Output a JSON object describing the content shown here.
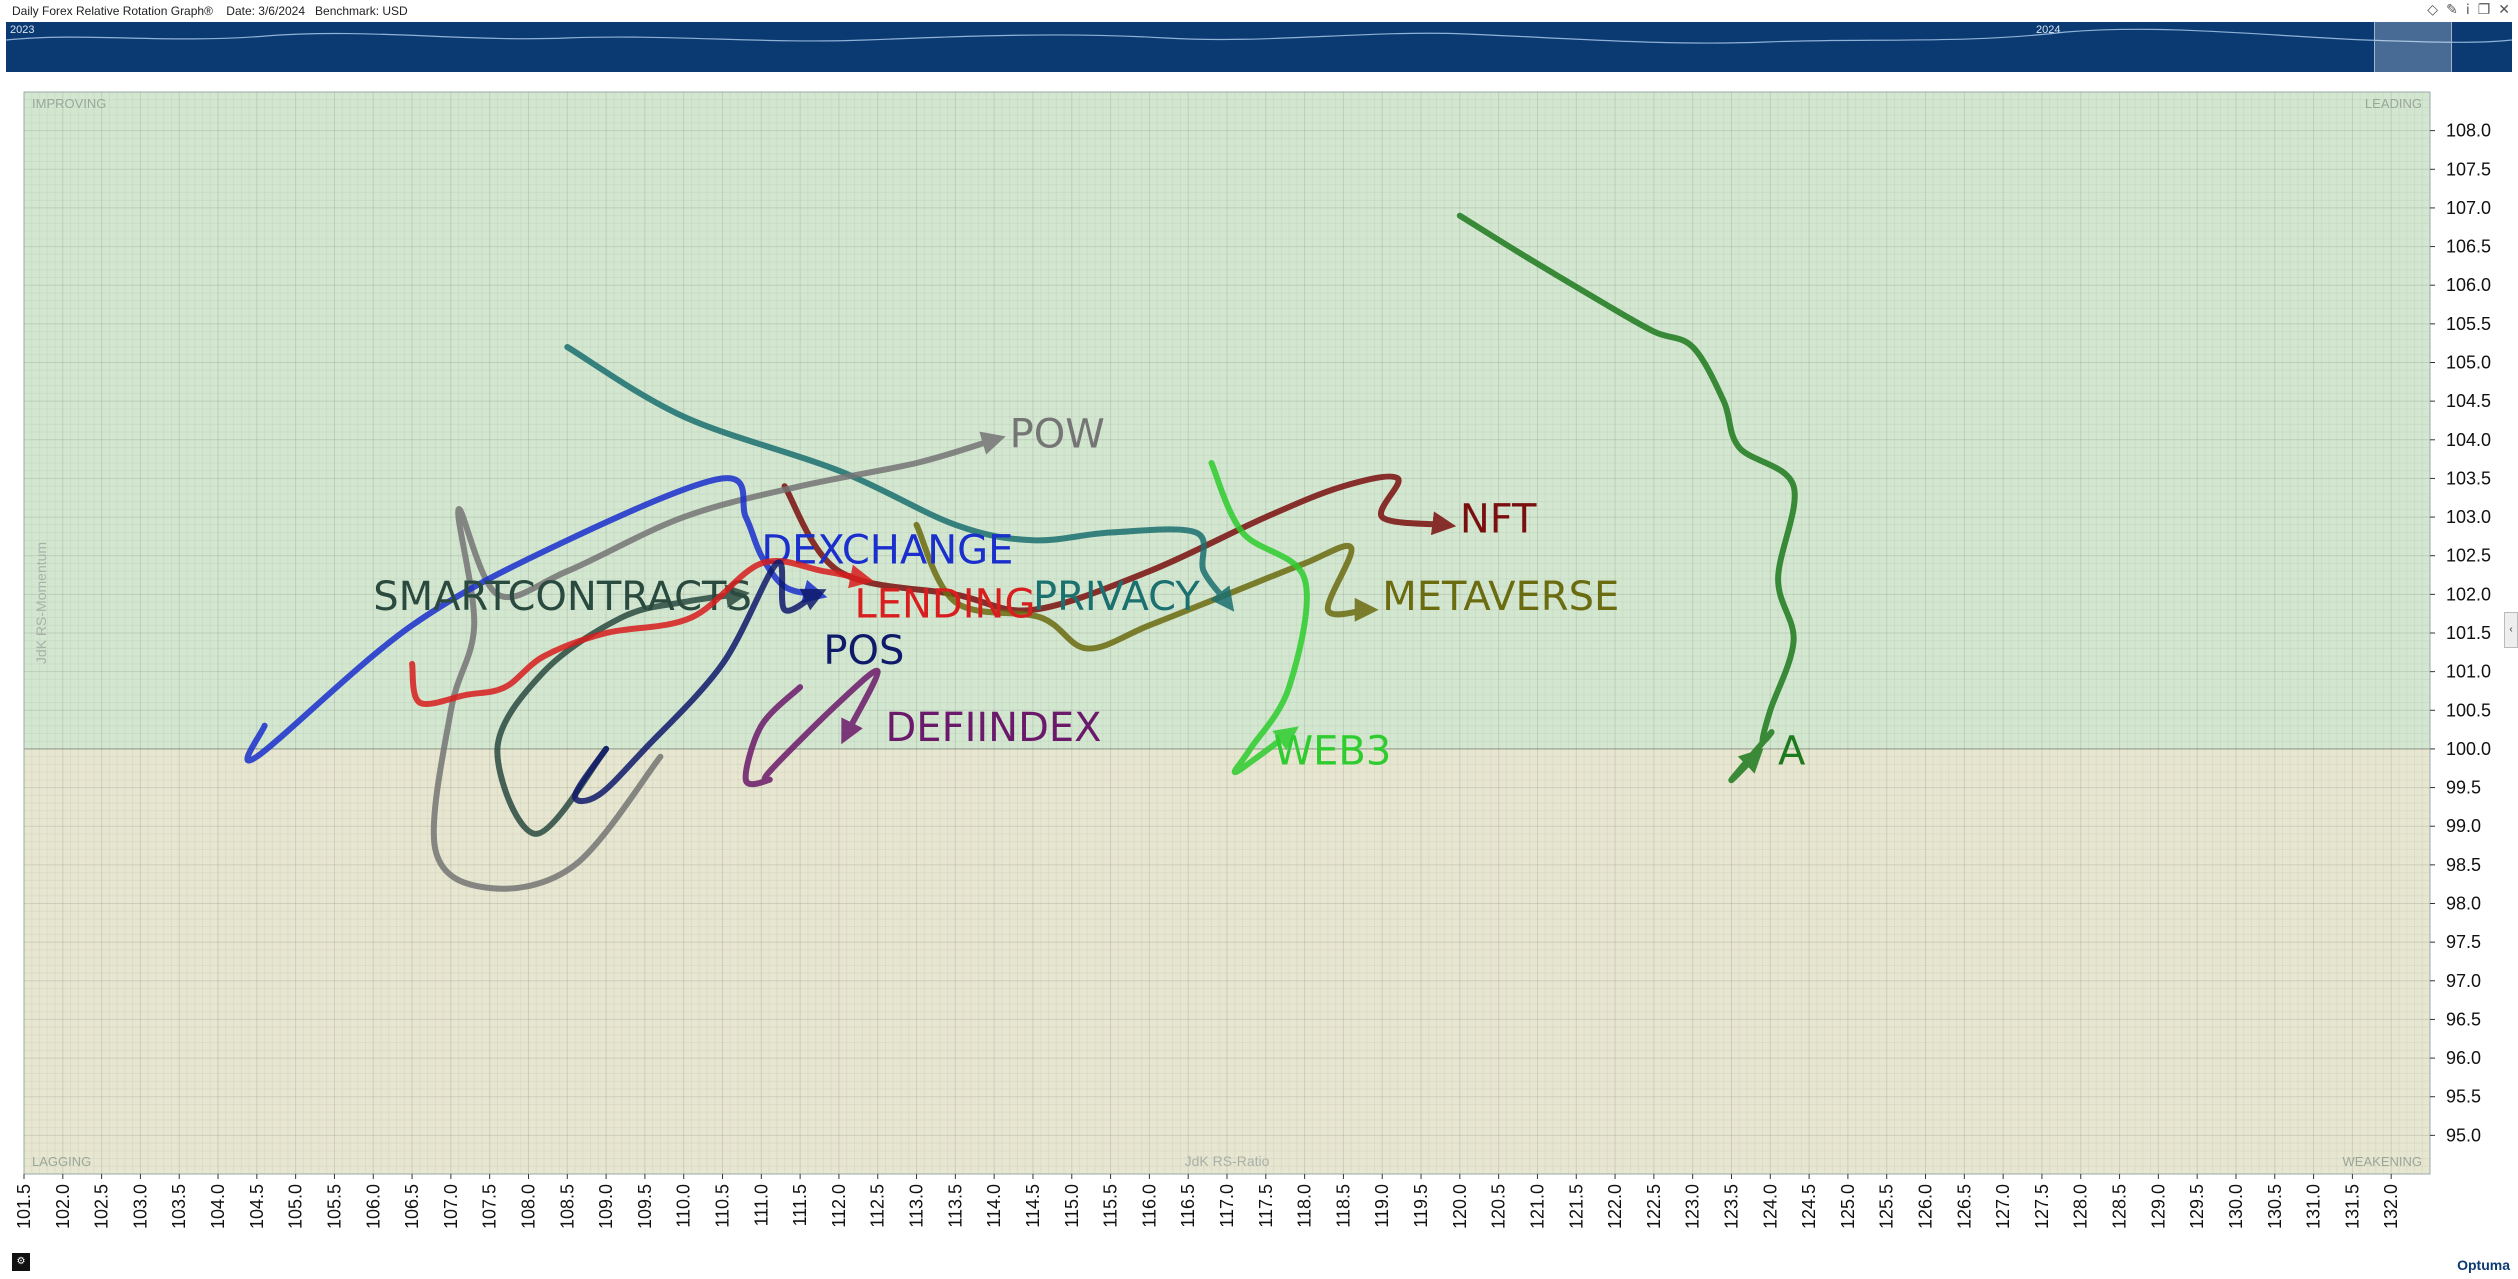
{
  "window": {
    "title": "Daily Forex Relative Rotation Graph®",
    "date": "Date: 3/6/2024",
    "benchmark": "Benchmark:  USD"
  },
  "navigator": {
    "year_labels": [
      "2023",
      "2024"
    ]
  },
  "quadrants": {
    "improving": "IMPROVING",
    "leading": "LEADING",
    "lagging": "LAGGING",
    "weakening": "WEAKENING"
  },
  "brand": {
    "logo": "Optuma"
  },
  "colors": {
    "improving": "#d3e7d0",
    "leading": "#d3e7d0",
    "lagging": "#e7e6d0",
    "weakening": "#e7e6d0",
    "navigator": "#0b3a73"
  },
  "chart_data": {
    "type": "scatter",
    "subtype": "relative-rotation-graph",
    "xlabel": "JdK RS-Ratio",
    "ylabel": "JdK RS-Momentum",
    "xlim": [
      101.5,
      132.5
    ],
    "ylim": [
      94.5,
      108.5
    ],
    "x_ticks": [
      "101.5",
      "102.0",
      "102.5",
      "103.0",
      "103.5",
      "104.0",
      "104.5",
      "105.0",
      "105.5",
      "106.0",
      "106.5",
      "107.0",
      "107.5",
      "108.0",
      "108.5",
      "109.0",
      "109.5",
      "110.0",
      "110.5",
      "111.0",
      "111.5",
      "112.0",
      "112.5",
      "113.0",
      "113.5",
      "114.0",
      "114.5",
      "115.0",
      "115.5",
      "116.0",
      "116.5",
      "117.0",
      "117.5",
      "118.0",
      "118.5",
      "119.0",
      "119.5",
      "120.0",
      "120.5",
      "121.0",
      "121.5",
      "122.0",
      "122.5",
      "123.0",
      "123.5",
      "124.0",
      "124.5",
      "125.0",
      "125.5",
      "126.0",
      "126.5",
      "127.0",
      "127.5",
      "128.0",
      "128.5",
      "129.0",
      "129.5",
      "130.0",
      "130.5",
      "131.0",
      "131.5",
      "132.0"
    ],
    "y_ticks": [
      "95.0",
      "95.5",
      "96.0",
      "96.5",
      "97.0",
      "97.5",
      "98.0",
      "98.5",
      "99.0",
      "99.5",
      "100.0",
      "100.5",
      "101.0",
      "101.5",
      "102.0",
      "102.5",
      "103.0",
      "103.5",
      "104.0",
      "104.5",
      "105.0",
      "105.5",
      "106.0",
      "106.5",
      "107.0",
      "107.5",
      "108.0"
    ],
    "grid": true,
    "series": [
      {
        "name": "A",
        "color": "#1e7a1e",
        "points": [
          [
            120.0,
            106.9
          ],
          [
            120.8,
            106.4
          ],
          [
            121.8,
            105.8
          ],
          [
            122.5,
            105.4
          ],
          [
            123.0,
            105.2
          ],
          [
            123.4,
            104.5
          ],
          [
            123.6,
            103.9
          ],
          [
            124.3,
            103.4
          ],
          [
            124.1,
            102.2
          ],
          [
            124.3,
            101.4
          ],
          [
            124.0,
            100.5
          ],
          [
            123.9,
            100.1
          ],
          [
            124.0,
            100.2
          ],
          [
            123.5,
            99.6
          ],
          [
            123.8,
            99.9
          ]
        ]
      },
      {
        "name": "NFT",
        "color": "#7a0f0f",
        "points": [
          [
            111.3,
            103.4
          ],
          [
            112.0,
            102.3
          ],
          [
            113.5,
            102.0
          ],
          [
            114.5,
            101.8
          ],
          [
            116.0,
            102.3
          ],
          [
            117.5,
            103.0
          ],
          [
            118.5,
            103.4
          ],
          [
            119.2,
            103.5
          ],
          [
            119.0,
            103.0
          ],
          [
            119.8,
            102.9
          ]
        ]
      },
      {
        "name": "METAVERSE",
        "color": "#6b6b10",
        "points": [
          [
            113.0,
            102.9
          ],
          [
            113.5,
            101.9
          ],
          [
            114.6,
            101.7
          ],
          [
            115.2,
            101.3
          ],
          [
            116.0,
            101.6
          ],
          [
            117.0,
            102.0
          ],
          [
            118.0,
            102.4
          ],
          [
            118.6,
            102.6
          ],
          [
            118.3,
            101.8
          ],
          [
            118.8,
            101.8
          ]
        ]
      },
      {
        "name": "PRIVACY",
        "color": "#1b7070",
        "points": [
          [
            108.5,
            105.2
          ],
          [
            110.0,
            104.3
          ],
          [
            112.0,
            103.6
          ],
          [
            113.5,
            102.9
          ],
          [
            114.5,
            102.7
          ],
          [
            115.5,
            102.8
          ],
          [
            116.6,
            102.8
          ],
          [
            116.7,
            102.3
          ],
          [
            117.0,
            101.9
          ]
        ]
      },
      {
        "name": "WEB3",
        "color": "#2ecc2e",
        "points": [
          [
            116.8,
            103.7
          ],
          [
            117.2,
            102.8
          ],
          [
            118.0,
            102.2
          ],
          [
            117.8,
            100.8
          ],
          [
            117.3,
            100.0
          ],
          [
            117.1,
            99.7
          ],
          [
            117.4,
            99.9
          ],
          [
            117.8,
            100.2
          ]
        ]
      },
      {
        "name": "POW",
        "color": "#757575",
        "points": [
          [
            109.7,
            99.9
          ],
          [
            108.6,
            98.5
          ],
          [
            107.5,
            98.2
          ],
          [
            106.8,
            98.7
          ],
          [
            107.0,
            100.5
          ],
          [
            107.3,
            101.6
          ],
          [
            107.1,
            103.1
          ],
          [
            107.6,
            102.0
          ],
          [
            108.5,
            102.3
          ],
          [
            110.0,
            103.0
          ],
          [
            111.5,
            103.4
          ],
          [
            113.0,
            103.7
          ],
          [
            114.0,
            104.0
          ]
        ]
      },
      {
        "name": "DEXCHANGE",
        "color": "#1a2fcc",
        "points": [
          [
            104.6,
            100.3
          ],
          [
            104.5,
            99.9
          ],
          [
            106.5,
            101.6
          ],
          [
            108.5,
            102.7
          ],
          [
            110.5,
            103.5
          ],
          [
            110.8,
            103.0
          ],
          [
            111.0,
            102.5
          ],
          [
            111.3,
            102.1
          ],
          [
            111.7,
            102.0
          ]
        ]
      },
      {
        "name": "SMARTCONTRACTS",
        "color": "#2a4a40",
        "points": [
          [
            109.0,
            100.0
          ],
          [
            108.1,
            98.9
          ],
          [
            107.6,
            100.0
          ],
          [
            108.2,
            101.0
          ],
          [
            109.2,
            101.7
          ],
          [
            110.0,
            101.9
          ],
          [
            110.7,
            102.0
          ]
        ]
      },
      {
        "name": "LENDING",
        "color": "#d81e1e",
        "points": [
          [
            106.5,
            101.1
          ],
          [
            106.6,
            100.6
          ],
          [
            107.2,
            100.7
          ],
          [
            107.7,
            100.8
          ],
          [
            108.2,
            101.2
          ],
          [
            109.0,
            101.5
          ],
          [
            110.1,
            101.7
          ],
          [
            111.0,
            102.4
          ],
          [
            111.8,
            102.3
          ],
          [
            112.3,
            102.2
          ]
        ]
      },
      {
        "name": "POS",
        "color": "#0f1a6b",
        "points": [
          [
            109.0,
            100.0
          ],
          [
            108.6,
            99.4
          ],
          [
            108.9,
            99.4
          ],
          [
            109.5,
            100.0
          ],
          [
            110.5,
            101.1
          ],
          [
            111.2,
            102.4
          ],
          [
            111.3,
            101.8
          ],
          [
            111.7,
            102.0
          ]
        ]
      },
      {
        "name": "DEFIINDEX",
        "color": "#6b1a6b",
        "points": [
          [
            111.5,
            100.8
          ],
          [
            111.0,
            100.3
          ],
          [
            110.8,
            99.6
          ],
          [
            111.1,
            99.6
          ],
          [
            111.1,
            99.7
          ],
          [
            112.0,
            100.6
          ],
          [
            112.5,
            101.0
          ],
          [
            112.1,
            100.2
          ]
        ]
      }
    ],
    "label_positions_data_units": {
      "A": [
        124.1,
        99.8
      ],
      "NFT": [
        120.0,
        102.8
      ],
      "METAVERSE": [
        119.0,
        101.8
      ],
      "PRIVACY": [
        114.5,
        101.8
      ],
      "WEB3": [
        117.6,
        99.8
      ],
      "POW": [
        114.2,
        103.9
      ],
      "DEXCHANGE": [
        111.0,
        102.4
      ],
      "SMARTCONTRACTS": [
        106.0,
        101.8
      ],
      "LENDING": [
        112.2,
        101.7
      ],
      "POS": [
        111.8,
        101.1
      ],
      "DEFIINDEX": [
        112.6,
        100.1
      ]
    }
  }
}
